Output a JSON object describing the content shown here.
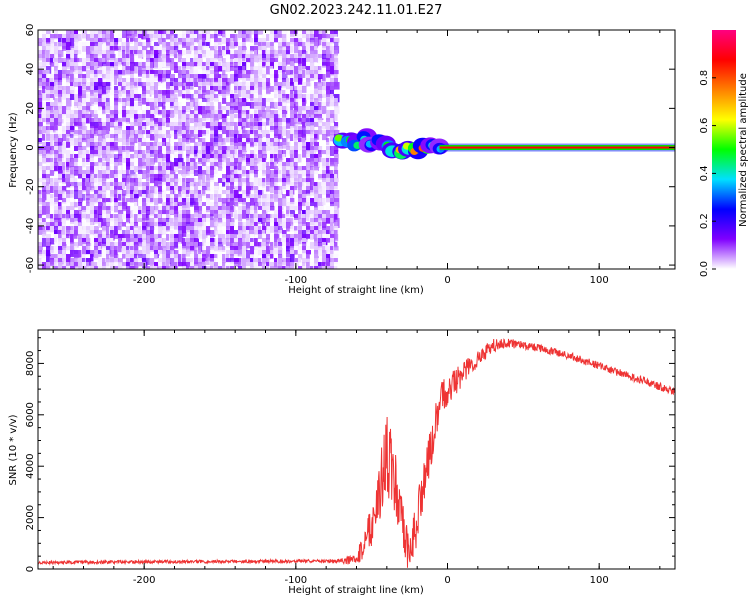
{
  "title": "GN02.2023.242.11.01.E27",
  "chart_data": [
    {
      "type": "heatmap",
      "xlabel": "Height of straight line (km)",
      "ylabel": "Frequency (Hz)",
      "xlim": [
        -270,
        150
      ],
      "ylim": [
        -62,
        60
      ],
      "xticks": [
        -200,
        -100,
        0,
        100
      ],
      "yticks": [
        -60,
        -40,
        -20,
        0,
        20,
        40,
        60
      ],
      "colorbar": {
        "label": "Normalized spectral amplitude",
        "range": [
          0,
          1
        ],
        "ticks": [
          0.0,
          0.2,
          0.4,
          0.6,
          0.8
        ],
        "colormap": [
          "#ffffff",
          "#8000ff",
          "#0000ff",
          "#00e0ff",
          "#00ff00",
          "#ffff00",
          "#ff8000",
          "#ff0000",
          "#ff0080"
        ]
      },
      "noise_region": {
        "x_range": [
          -270,
          -73
        ],
        "amplitude_max": 0.15
      },
      "signal_blobs": [
        {
          "x": -70,
          "freq": 4,
          "amp": 0.55
        },
        {
          "x": -65,
          "freq": 3,
          "amp": 0.5
        },
        {
          "x": -60,
          "freq": 2,
          "amp": 0.45
        },
        {
          "x": -55,
          "freq": 5,
          "amp": 0.4
        },
        {
          "x": -50,
          "freq": 2,
          "amp": 0.35
        },
        {
          "x": -45,
          "freq": 3,
          "amp": 0.4
        },
        {
          "x": -40,
          "freq": 1,
          "amp": 0.5
        },
        {
          "x": -35,
          "freq": -1,
          "amp": 0.6
        },
        {
          "x": -30,
          "freq": -2,
          "amp": 0.7
        },
        {
          "x": -25,
          "freq": 0,
          "amp": 0.6
        },
        {
          "x": -20,
          "freq": -1,
          "amp": 0.75
        },
        {
          "x": -15,
          "freq": 0,
          "amp": 0.8
        },
        {
          "x": -10,
          "freq": 1,
          "amp": 0.4
        },
        {
          "x": -5,
          "freq": 0,
          "amp": 0.35
        }
      ],
      "tone": {
        "x_range": [
          0,
          150
        ],
        "freq": 0,
        "amplitude": 1.0
      }
    },
    {
      "type": "line",
      "xlabel": "Height of straight line (km)",
      "ylabel": "SNR (10 * v/v)",
      "xlim": [
        -270,
        150
      ],
      "ylim": [
        0,
        9300
      ],
      "xticks": [
        -200,
        -100,
        0,
        100
      ],
      "yticks": [
        0,
        2000,
        4000,
        6000,
        8000
      ],
      "series": [
        {
          "color": "#ee3333",
          "x": [
            -270,
            -240,
            -200,
            -160,
            -120,
            -80,
            -60,
            -55,
            -50,
            -45,
            -40,
            -35,
            -30,
            -25,
            -20,
            -15,
            -10,
            -5,
            0,
            10,
            20,
            30,
            40,
            50,
            60,
            80,
            100,
            120,
            150
          ],
          "y": [
            250,
            260,
            280,
            290,
            300,
            310,
            350,
            1000,
            1800,
            3000,
            4500,
            3500,
            1500,
            500,
            2000,
            3500,
            5000,
            6500,
            7000,
            7600,
            8200,
            8700,
            8800,
            8700,
            8600,
            8300,
            7900,
            7500,
            6900
          ],
          "noise": [
            60,
            60,
            60,
            60,
            60,
            60,
            200,
            600,
            900,
            1200,
            1500,
            1500,
            1200,
            800,
            1000,
            900,
            800,
            700,
            600,
            500,
            350,
            250,
            200,
            150,
            150,
            150,
            150,
            150,
            150
          ]
        }
      ]
    }
  ]
}
